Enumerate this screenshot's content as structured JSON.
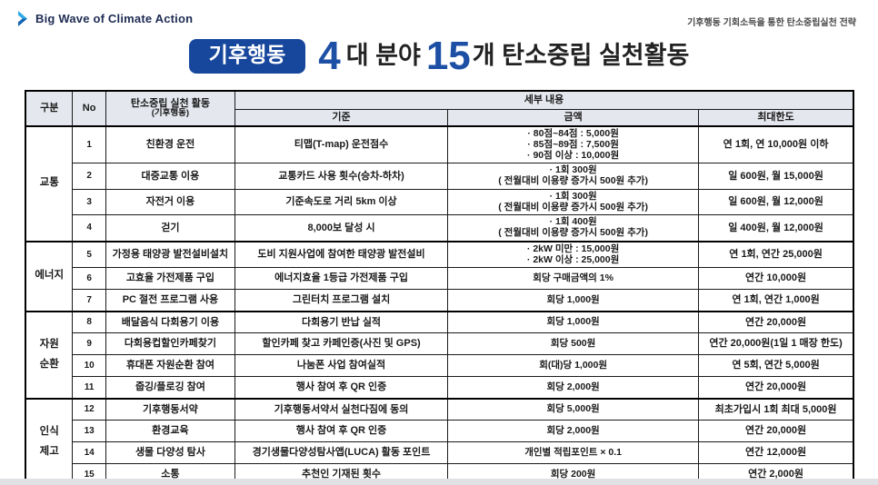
{
  "header": {
    "logo_text": "Big Wave of Climate Action",
    "top_right_note": "기후행동 기회소득을 통한 탄소중립실천 전략"
  },
  "title": {
    "badge": "기후행동",
    "count_fields": "4",
    "fields_label": "대 분야",
    "count_activities": "15",
    "activities_label": "개 탄소중립 실천활동"
  },
  "colors": {
    "badge_blue": "#17479c",
    "number_blue": "#1d50a5",
    "header_bg": "#e4e7ee",
    "logo_light_blue": "#2ea9e5",
    "logo_dark_blue": "#1464b4"
  },
  "table": {
    "columns": {
      "category": "구분",
      "no": "No",
      "activity_line1": "탄소중립 실천 활동",
      "activity_line2": "(기후행동)",
      "detail": "세부 내용",
      "standard": "기준",
      "amount": "금액",
      "max": "최대한도"
    },
    "groups": [
      {
        "category": "교통",
        "rows": [
          {
            "no": "1",
            "activity": "친환경 운전",
            "standard": "티맵(T-map) 운전점수",
            "amount": "· 80점~84점 : 5,000원\n· 85점~89점 : 7,500원\n· 90점 이상 : 10,000원",
            "max": "연 1회, 연 10,000원 이하"
          },
          {
            "no": "2",
            "activity": "대중교통 이용",
            "standard": "교통카드 사용 횟수(승차-하차)",
            "amount": "· 1회 300원\n( 전월대비 이용량 증가시 500원 추가)",
            "max": "일 600원, 월 15,000원"
          },
          {
            "no": "3",
            "activity": "자전거 이용",
            "standard": "기준속도로 거리 5km 이상",
            "amount": "· 1회 300원\n( 전월대비 이용량 증가시 500원 추가)",
            "max": "일 600원, 월 12,000원"
          },
          {
            "no": "4",
            "activity": "걷기",
            "standard": "8,000보 달성 시",
            "amount": "· 1회 400원\n( 전월대비 이용량 증가시 500원 추가)",
            "max": "일 400원, 월 12,000원"
          }
        ]
      },
      {
        "category": "에너지",
        "rows": [
          {
            "no": "5",
            "activity": "가정용 태양광 발전설비설치",
            "standard": "도비 지원사업에 참여한 태양광 발전설비",
            "amount": "· 2kW 미만 : 15,000원\n· 2kW 이상 : 25,000원",
            "max": "연 1회, 연간 25,000원"
          },
          {
            "no": "6",
            "activity": "고효율 가전제품 구입",
            "standard": "에너지효율 1등급 가전제품 구입",
            "amount": "회당 구매금액의 1%",
            "max": "연간 10,000원"
          },
          {
            "no": "7",
            "activity": "PC 절전 프로그램 사용",
            "standard": "그린터치 프로그램 설치",
            "amount": "회당 1,000원",
            "max": "연 1회, 연간 1,000원"
          }
        ]
      },
      {
        "category": "자원\n순환",
        "rows": [
          {
            "no": "8",
            "activity": "배달음식 다회용기 이용",
            "standard": "다회용기 반납 실적",
            "amount": "회당 1,000원",
            "max": "연간 20,000원"
          },
          {
            "no": "9",
            "activity": "다회용컵할인카페찾기",
            "standard": "할인카페 찾고 카페인증(사진 및 GPS)",
            "amount": "회당 500원",
            "max": "연간 20,000원(1일 1 매장 한도)"
          },
          {
            "no": "10",
            "activity": "휴대폰 자원순환 참여",
            "standard": "나눔폰 사업 참여실적",
            "amount": "회(대)당 1,000원",
            "max": "연 5회, 연간 5,000원"
          },
          {
            "no": "11",
            "activity": "줍깅/플로깅 참여",
            "standard": "행사 참여 후 QR 인증",
            "amount": "회당 2,000원",
            "max": "연간 20,000원"
          }
        ]
      },
      {
        "category": "인식\n제고",
        "rows": [
          {
            "no": "12",
            "activity": "기후행동서약",
            "standard": "기후행동서약서 실천다짐에 동의",
            "amount": "회당 5,000원",
            "max": "최초가입시 1회 최대 5,000원"
          },
          {
            "no": "13",
            "activity": "환경교육",
            "standard": "행사 참여 후 QR 인증",
            "amount": "회당 2,000원",
            "max": "연간 20,000원"
          },
          {
            "no": "14",
            "activity": "생물 다양성 탐사",
            "standard": "경기생물다양성탐사앱(LUCA) 활동 포인트",
            "amount": "개인별 적립포인트 × 0.1",
            "max": "연간 12,000원"
          },
          {
            "no": "15",
            "activity": "소통",
            "standard": "추천인 기재된 횟수",
            "amount": "회당 200원",
            "max": "연간 2,000원"
          }
        ]
      }
    ]
  }
}
